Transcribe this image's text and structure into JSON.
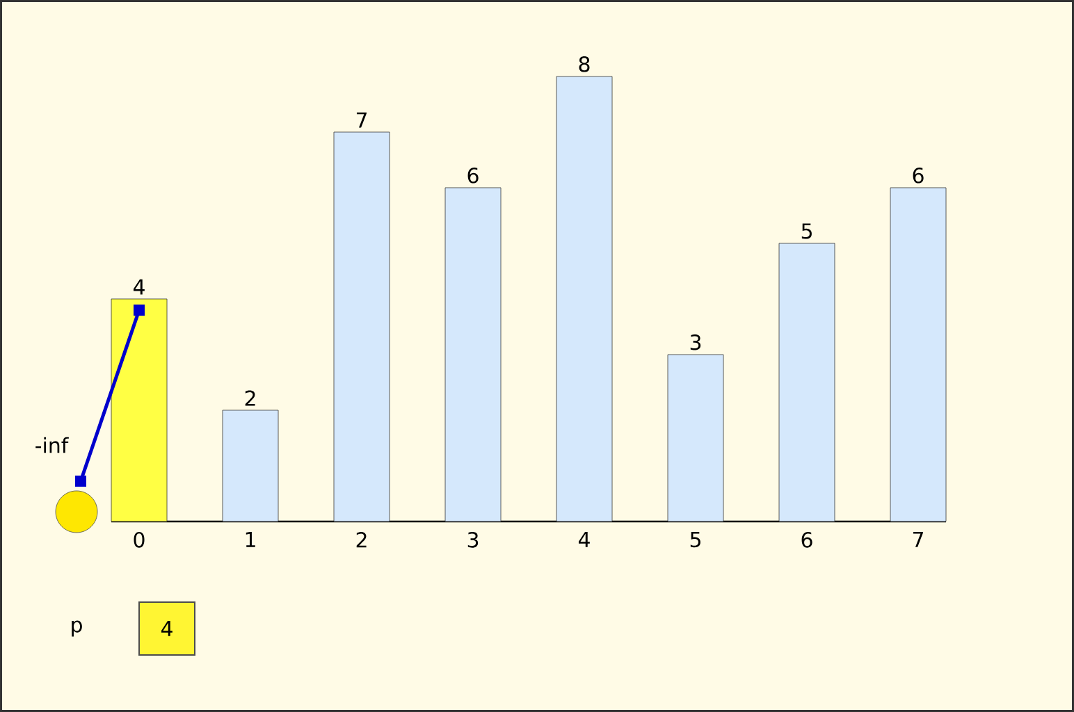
{
  "chart_data": {
    "type": "bar",
    "categories": [
      "0",
      "1",
      "2",
      "3",
      "4",
      "5",
      "6",
      "7"
    ],
    "values": [
      4,
      2,
      7,
      6,
      8,
      3,
      5,
      6
    ],
    "colors": [
      "#ffff44",
      "#d5e8fc",
      "#d5e8fc",
      "#d5e8fc",
      "#d5e8fc",
      "#d5e8fc",
      "#d5e8fc",
      "#d5e8fc"
    ],
    "data_labels": true,
    "annotations": [
      "-inf",
      "p",
      "4"
    ]
  }
}
